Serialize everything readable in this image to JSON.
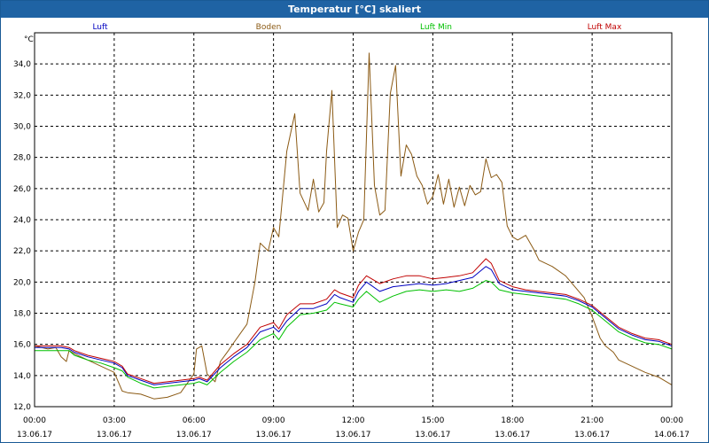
{
  "window": {
    "title": "Temperatur [°C] skaliert"
  },
  "chart_data": {
    "type": "line",
    "title": "Temperatur [°C] skaliert",
    "ylabel": "°C",
    "xlabel": "",
    "ylim": [
      12.0,
      36.0
    ],
    "yticks": [
      "12,0",
      "14,0",
      "16,0",
      "18,0",
      "20,0",
      "22,0",
      "24,0",
      "26,0",
      "28,0",
      "30,0",
      "32,0",
      "34,0"
    ],
    "xlim_hours": [
      0,
      24
    ],
    "xticks": [
      {
        "time": "00:00",
        "date": "13.06.17"
      },
      {
        "time": "03:00",
        "date": "13.06.17"
      },
      {
        "time": "06:00",
        "date": "13.06.17"
      },
      {
        "time": "09:00",
        "date": "13.06.17"
      },
      {
        "time": "12:00",
        "date": "13.06.17"
      },
      {
        "time": "15:00",
        "date": "13.06.17"
      },
      {
        "time": "18:00",
        "date": "13.06.17"
      },
      {
        "time": "21:00",
        "date": "13.06.17"
      },
      {
        "time": "00:00",
        "date": "14.06.17"
      }
    ],
    "grid": true,
    "legend_position": "top",
    "series": [
      {
        "name": "Luft",
        "color": "#0000c0",
        "x": [
          0,
          0.5,
          1,
          1.3,
          1.5,
          2,
          2.5,
          3,
          3.3,
          3.5,
          4,
          4.5,
          5,
          5.5,
          6,
          6.2,
          6.5,
          7,
          7.5,
          8,
          8.5,
          9,
          9.2,
          9.5,
          10,
          10.5,
          11,
          11.3,
          11.5,
          12,
          12.2,
          12.5,
          13,
          13.5,
          14,
          14.5,
          15,
          15.5,
          16,
          16.5,
          17,
          17.2,
          17.5,
          18,
          18.5,
          19,
          19.5,
          20,
          20.5,
          21,
          21.5,
          22,
          22.5,
          23,
          23.5,
          24
        ],
        "y": [
          15.8,
          15.8,
          15.8,
          15.7,
          15.5,
          15.2,
          15.0,
          14.8,
          14.5,
          14.0,
          13.7,
          13.4,
          13.5,
          13.6,
          13.7,
          13.8,
          13.6,
          14.5,
          15.2,
          15.8,
          16.8,
          17.1,
          16.8,
          17.5,
          18.3,
          18.3,
          18.6,
          19.2,
          19.0,
          18.7,
          19.4,
          20.0,
          19.4,
          19.7,
          19.8,
          19.9,
          19.8,
          19.9,
          20.1,
          20.3,
          21.0,
          20.8,
          19.9,
          19.5,
          19.4,
          19.3,
          19.2,
          19.1,
          18.8,
          18.4,
          17.7,
          17.0,
          16.6,
          16.3,
          16.2,
          15.9
        ]
      },
      {
        "name": "Boden",
        "color": "#8b5a14",
        "x": [
          0,
          0.5,
          0.8,
          1,
          1.2,
          1.3,
          1.5,
          2,
          2.5,
          3,
          3.3,
          3.5,
          4,
          4.5,
          5,
          5.5,
          6,
          6.1,
          6.3,
          6.5,
          6.8,
          7,
          7.3,
          7.5,
          8,
          8.3,
          8.5,
          8.8,
          9,
          9.2,
          9.5,
          9.8,
          10,
          10.3,
          10.5,
          10.7,
          10.9,
          11,
          11.2,
          11.4,
          11.6,
          11.8,
          12,
          12.2,
          12.4,
          12.6,
          12.8,
          13,
          13.2,
          13.4,
          13.6,
          13.8,
          14,
          14.2,
          14.4,
          14.6,
          14.8,
          15,
          15.2,
          15.4,
          15.6,
          15.8,
          16,
          16.2,
          16.4,
          16.6,
          16.8,
          17,
          17.2,
          17.4,
          17.6,
          17.8,
          18,
          18.2,
          18.5,
          18.8,
          19,
          19.5,
          20,
          20.3,
          20.7,
          21,
          21.3,
          21.5,
          21.8,
          22,
          22.5,
          23,
          23.5,
          24
        ],
        "y": [
          15.9,
          15.7,
          15.8,
          15.2,
          14.9,
          15.6,
          15.4,
          15.0,
          14.6,
          14.2,
          13.0,
          12.9,
          12.8,
          12.5,
          12.6,
          12.9,
          14.1,
          15.7,
          15.9,
          14.1,
          13.6,
          14.9,
          15.6,
          16.1,
          17.3,
          20.0,
          22.5,
          22.0,
          23.5,
          22.9,
          28.4,
          30.8,
          25.7,
          24.6,
          26.6,
          24.5,
          25.1,
          28.4,
          32.3,
          23.5,
          24.3,
          24.1,
          22.0,
          23.2,
          24.0,
          34.7,
          26.2,
          24.3,
          24.6,
          32.1,
          33.9,
          26.8,
          28.8,
          28.2,
          26.8,
          26.2,
          25.0,
          25.5,
          26.9,
          25.0,
          26.6,
          24.8,
          26.1,
          24.9,
          26.2,
          25.6,
          25.8,
          27.9,
          26.7,
          26.9,
          26.4,
          23.6,
          22.9,
          22.7,
          23.0,
          22.1,
          21.4,
          21.0,
          20.4,
          19.8,
          19.0,
          17.8,
          16.4,
          15.9,
          15.5,
          15.0,
          14.6,
          14.2,
          13.9,
          13.4
        ]
      },
      {
        "name": "Luft Min",
        "color": "#00c000",
        "x": [
          0,
          0.5,
          1,
          1.3,
          1.5,
          2,
          2.5,
          3,
          3.3,
          3.5,
          4,
          4.5,
          5,
          5.5,
          6,
          6.2,
          6.5,
          7,
          7.5,
          8,
          8.5,
          9,
          9.2,
          9.5,
          10,
          10.5,
          11,
          11.3,
          11.5,
          12,
          12.2,
          12.5,
          13,
          13.5,
          14,
          14.5,
          15,
          15.5,
          16,
          16.5,
          17,
          17.2,
          17.5,
          18,
          18.5,
          19,
          19.5,
          20,
          20.5,
          21,
          21.5,
          22,
          22.5,
          23,
          23.5,
          24
        ],
        "y": [
          15.6,
          15.6,
          15.6,
          15.6,
          15.3,
          15.0,
          14.8,
          14.5,
          14.3,
          13.9,
          13.5,
          13.2,
          13.3,
          13.4,
          13.5,
          13.6,
          13.4,
          14.2,
          14.9,
          15.5,
          16.3,
          16.7,
          16.3,
          17.1,
          17.9,
          18.0,
          18.2,
          18.7,
          18.6,
          18.4,
          18.9,
          19.4,
          18.7,
          19.1,
          19.4,
          19.5,
          19.4,
          19.5,
          19.4,
          19.6,
          20.1,
          20.0,
          19.5,
          19.3,
          19.2,
          19.1,
          19.0,
          18.9,
          18.6,
          18.2,
          17.5,
          16.8,
          16.4,
          16.1,
          16.0,
          15.7
        ]
      },
      {
        "name": "Luft Max",
        "color": "#c00000",
        "x": [
          0,
          0.5,
          1,
          1.3,
          1.5,
          2,
          2.5,
          3,
          3.3,
          3.5,
          4,
          4.5,
          5,
          5.5,
          6,
          6.2,
          6.5,
          7,
          7.5,
          8,
          8.5,
          9,
          9.2,
          9.5,
          10,
          10.5,
          11,
          11.3,
          11.5,
          12,
          12.2,
          12.5,
          13,
          13.5,
          14,
          14.5,
          15,
          15.5,
          16,
          16.5,
          17,
          17.2,
          17.5,
          18,
          18.5,
          19,
          19.5,
          20,
          20.5,
          21,
          21.5,
          22,
          22.5,
          23,
          23.5,
          24
        ],
        "y": [
          15.9,
          15.9,
          15.9,
          15.8,
          15.6,
          15.3,
          15.1,
          14.9,
          14.6,
          14.1,
          13.8,
          13.5,
          13.6,
          13.7,
          13.8,
          13.9,
          13.7,
          14.7,
          15.4,
          16.0,
          17.1,
          17.4,
          17.0,
          17.9,
          18.6,
          18.6,
          18.9,
          19.5,
          19.3,
          19.0,
          19.8,
          20.4,
          19.9,
          20.2,
          20.4,
          20.4,
          20.2,
          20.3,
          20.4,
          20.6,
          21.5,
          21.2,
          20.1,
          19.7,
          19.5,
          19.4,
          19.3,
          19.2,
          18.9,
          18.5,
          17.8,
          17.1,
          16.7,
          16.4,
          16.3,
          16.0
        ]
      }
    ]
  }
}
